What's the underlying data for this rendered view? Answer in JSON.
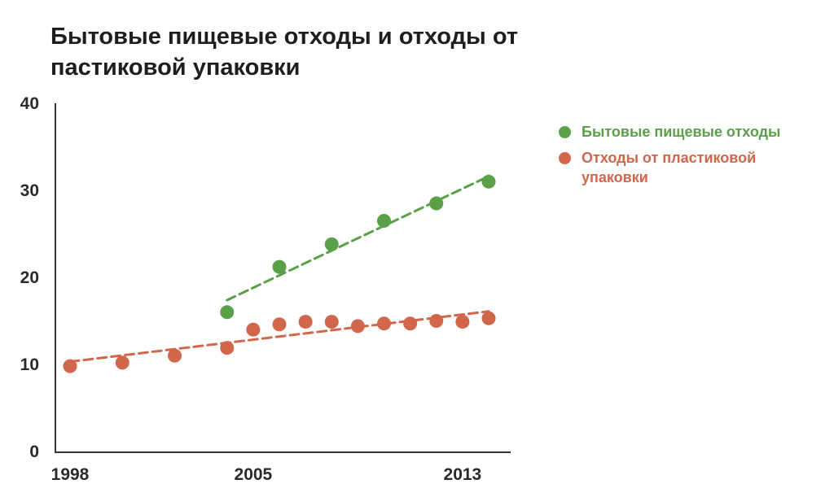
{
  "chart_data": {
    "type": "scatter",
    "title": "Бытовые пищевые отходы и отходы от пастиковой упаковки",
    "xlabel": "",
    "ylabel": "",
    "xlim": [
      1998,
      2015
    ],
    "ylim": [
      0,
      40
    ],
    "x_ticks": [
      "1998",
      "2005",
      "2013"
    ],
    "y_ticks": [
      "0",
      "10",
      "20",
      "30",
      "40"
    ],
    "grid": false,
    "legend_position": "right",
    "series": [
      {
        "name": "Бытовые пищевые отходы",
        "color": "#5aa048",
        "trendline": true,
        "x": [
          2004,
          2006,
          2008,
          2010,
          2012,
          2014
        ],
        "y": [
          16.0,
          21.2,
          23.8,
          26.5,
          28.5,
          31.0
        ]
      },
      {
        "name": "Отходы от пластиковой упаковки",
        "color": "#d2664a",
        "trendline": true,
        "x": [
          1998,
          2000,
          2002,
          2004,
          2005,
          2006,
          2007,
          2008,
          2009,
          2010,
          2011,
          2012,
          2013,
          2014
        ],
        "y": [
          9.8,
          10.2,
          11.0,
          11.9,
          14.0,
          14.6,
          14.9,
          14.9,
          14.4,
          14.7,
          14.7,
          15.0,
          14.9,
          15.3
        ]
      }
    ]
  }
}
